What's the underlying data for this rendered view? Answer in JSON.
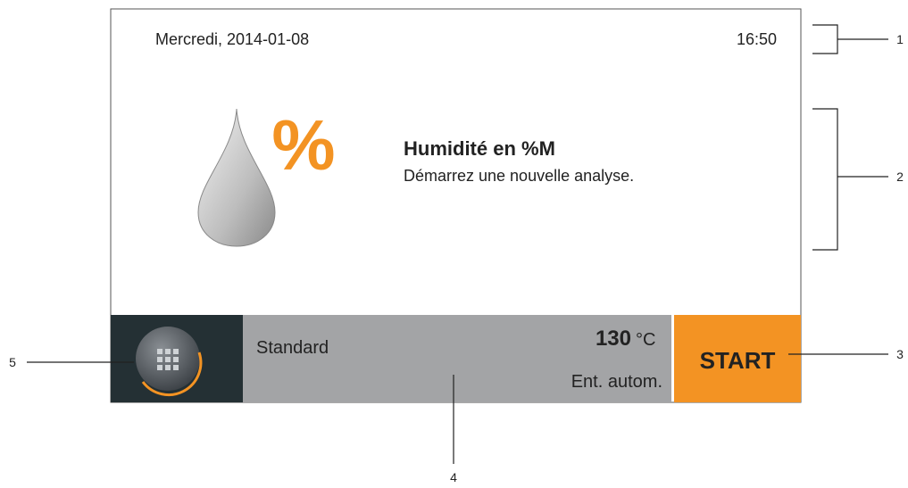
{
  "screen": {
    "date": "Mercredi, 2014-01-08",
    "time": "16:50",
    "icon_symbol": "%",
    "title": "Humidité en %M",
    "subtitle": "Démarrez une nouvelle analyse.",
    "method": "Standard",
    "temperature": "130",
    "temperature_unit": "°C",
    "switch_off": "Ent. autom.",
    "start_button": "START"
  },
  "callouts": [
    "1",
    "2",
    "3",
    "4",
    "5"
  ]
}
